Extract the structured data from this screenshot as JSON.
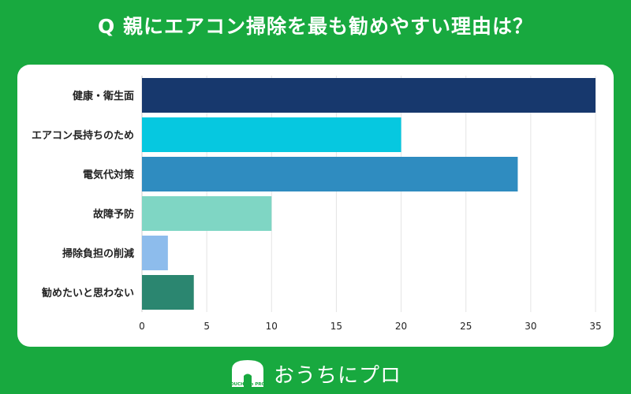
{
  "title": "Q 親にエアコン掃除を最も勧めやすい理由は？",
  "footer": {
    "logo_text": "OUCHI no PRO",
    "brand_name": "おうちにプロ"
  },
  "chart_data": {
    "type": "bar",
    "orientation": "horizontal",
    "title": "Q 親にエアコン掃除を最も勧めやすい理由は？",
    "categories": [
      "健康・衛生面",
      "エアコン長持ちのため",
      "電気代対策",
      "故障予防",
      "掃除負担の削減",
      "勧めたいと思わない"
    ],
    "values": [
      35,
      20,
      29,
      10,
      2,
      4
    ],
    "colors": [
      "#17386d",
      "#06c8e0",
      "#2f8cc0",
      "#7fd6c4",
      "#8dbcec",
      "#2b8670"
    ],
    "xlim": [
      0,
      35
    ],
    "xticks": [
      0,
      5,
      10,
      15,
      20,
      25,
      30,
      35
    ],
    "grid": true,
    "legend": "none"
  }
}
